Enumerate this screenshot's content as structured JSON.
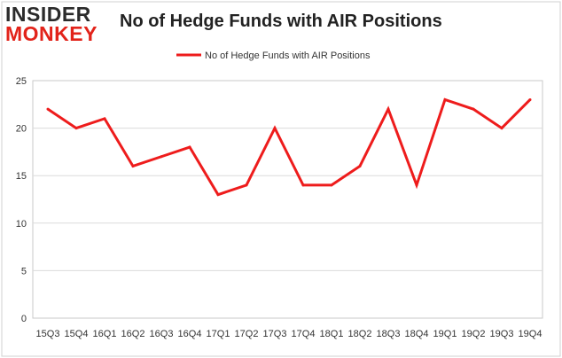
{
  "logo": {
    "line1": "INSIDER",
    "line2": "MONKEY"
  },
  "chart_data": {
    "type": "line",
    "title": "No of Hedge Funds with AIR Positions",
    "xlabel": "",
    "ylabel": "",
    "categories": [
      "15Q3",
      "15Q4",
      "16Q1",
      "16Q2",
      "16Q3",
      "16Q4",
      "17Q1",
      "17Q2",
      "17Q3",
      "17Q4",
      "18Q1",
      "18Q2",
      "18Q3",
      "18Q4",
      "19Q1",
      "19Q2",
      "19Q3",
      "19Q4"
    ],
    "series": [
      {
        "name": "No of Hedge Funds with AIR Positions",
        "color": "#ee1c1c",
        "values": [
          22,
          20,
          21,
          16,
          17,
          18,
          13,
          14,
          20,
          14,
          14,
          16,
          22,
          14,
          23,
          22,
          20,
          23
        ]
      }
    ],
    "yticks": [
      0,
      5,
      10,
      15,
      20,
      25
    ],
    "ylim": [
      0,
      25
    ],
    "grid": "horizontal",
    "legend_position": "top-center"
  }
}
